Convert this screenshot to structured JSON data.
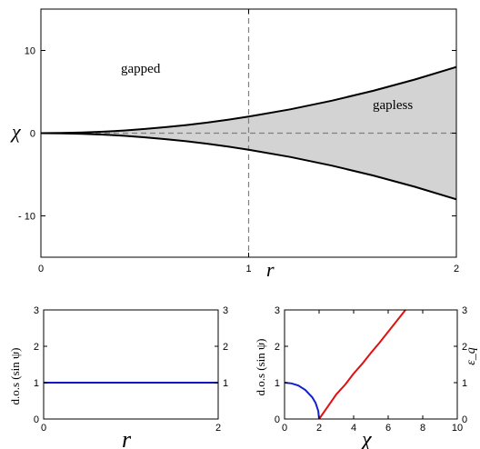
{
  "chart_data": [
    {
      "type": "area",
      "xlabel": "r",
      "ylabel": "χ",
      "xlim": [
        0,
        2
      ],
      "ylim": [
        -15,
        15
      ],
      "x_ticks": [
        "0",
        "1",
        "2"
      ],
      "y_ticks": [
        "10",
        "0",
        "- 10"
      ],
      "y_tick_values": [
        10,
        0,
        -10
      ],
      "x_tick_values": [
        0,
        1,
        2
      ],
      "annotations": [
        "gapped",
        "gapless"
      ],
      "dashed_lines": {
        "vertical_x": 1,
        "horizontal_y": 0
      },
      "series": [
        {
          "name": "",
          "x": [
            0,
            0.1,
            0.2,
            0.3,
            0.4,
            0.5,
            0.6,
            0.7,
            0.8,
            0.9,
            1.0,
            1.2,
            1.4,
            1.6,
            1.8,
            2.0
          ],
          "values": [
            0,
            0.02,
            0.08,
            0.18,
            0.32,
            0.5,
            0.72,
            0.98,
            1.28,
            1.62,
            2.0,
            2.88,
            3.92,
            5.12,
            6.48,
            8.0
          ]
        },
        {
          "name": "",
          "x": [
            0,
            0.1,
            0.2,
            0.3,
            0.4,
            0.5,
            0.6,
            0.7,
            0.8,
            0.9,
            1.0,
            1.2,
            1.4,
            1.6,
            1.8,
            2.0
          ],
          "values": [
            0,
            -0.02,
            -0.08,
            -0.18,
            -0.32,
            -0.5,
            -0.72,
            -0.98,
            -1.28,
            -1.62,
            -2.0,
            -2.88,
            -3.92,
            -5.12,
            -6.48,
            -8.0
          ]
        }
      ],
      "fill_between": "shaded region between the two curves for r > 0",
      "colors": {
        "curve": "#000000",
        "fill": "#d3d3d3",
        "dashed": "#808080"
      }
    },
    {
      "type": "line",
      "xlabel": "r",
      "ylabel": "d.o.s (sin ψ)",
      "xlim": [
        0,
        2
      ],
      "ylim": [
        0,
        3
      ],
      "x_ticks": [
        "0",
        "2"
      ],
      "x_tick_values": [
        0,
        2
      ],
      "y_ticks": [
        "0",
        "1",
        "2",
        "3"
      ],
      "y_tick_values": [
        0,
        1,
        2,
        3
      ],
      "right_y_ticks": [
        "1",
        "2",
        "3"
      ],
      "right_y_tick_values": [
        1,
        2,
        3
      ],
      "series": [
        {
          "name": "",
          "x": [
            0,
            2
          ],
          "values": [
            1,
            1
          ],
          "color": "#1010c0"
        }
      ]
    },
    {
      "type": "line",
      "xlabel": "χ",
      "ylabel": "d.o.s (sin ψ)",
      "right_ylabel": "ε_q",
      "xlim": [
        0,
        10
      ],
      "ylim": [
        0,
        3
      ],
      "x_ticks": [
        "0",
        "2",
        "4",
        "6",
        "8",
        "10"
      ],
      "x_tick_values": [
        0,
        2,
        4,
        6,
        8,
        10
      ],
      "y_ticks": [
        "0",
        "1",
        "2",
        "3"
      ],
      "y_tick_values": [
        0,
        1,
        2,
        3
      ],
      "right_y_ticks": [
        "0",
        "1",
        "2",
        "3"
      ],
      "right_y_tick_values": [
        0,
        1,
        2,
        3
      ],
      "series": [
        {
          "name": "",
          "x": [
            0,
            0.4,
            0.8,
            1.2,
            1.6,
            1.8,
            1.95,
            2.0
          ],
          "values": [
            1.0,
            0.98,
            0.92,
            0.8,
            0.6,
            0.44,
            0.22,
            0.0
          ],
          "color": "#1020d0"
        },
        {
          "name": "",
          "x": [
            2.0,
            2.5,
            3.0,
            3.5,
            4.0,
            4.5,
            5.0,
            5.5,
            6.0,
            6.5,
            7.0
          ],
          "values": [
            0.0,
            0.34,
            0.68,
            0.94,
            1.25,
            1.52,
            1.82,
            2.1,
            2.4,
            2.7,
            3.0
          ],
          "color": "#e01010"
        }
      ]
    }
  ]
}
